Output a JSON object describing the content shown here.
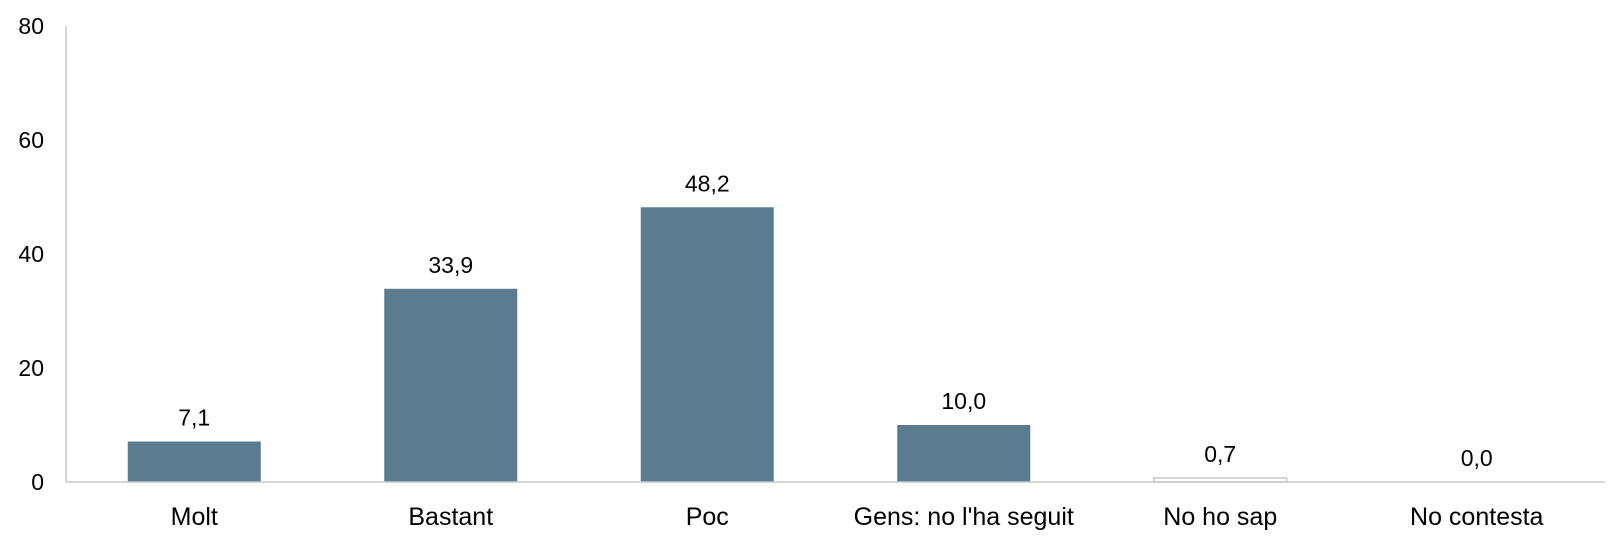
{
  "chart_data": {
    "type": "bar",
    "title": "",
    "xlabel": "",
    "ylabel": "",
    "categories": [
      "Molt",
      "Bastant",
      "Poc",
      "Gens: no l'ha seguit",
      "No ho sap",
      "No contesta"
    ],
    "values": [
      7.1,
      33.9,
      48.2,
      10.0,
      0.7,
      0.0
    ],
    "value_labels": [
      "7,1",
      "33,9",
      "48,2",
      "10,0",
      "0,7",
      "0,0"
    ],
    "ylim": [
      0,
      80
    ],
    "yticks": [
      "0",
      "20",
      "40",
      "60",
      "80"
    ],
    "grid": false,
    "legend": "none",
    "colors": {
      "bar": "#5b7b8f",
      "bar_light": "#ffffff",
      "bar_light_stroke": "#c8c8c8",
      "axis": "#c8c8c8"
    }
  }
}
